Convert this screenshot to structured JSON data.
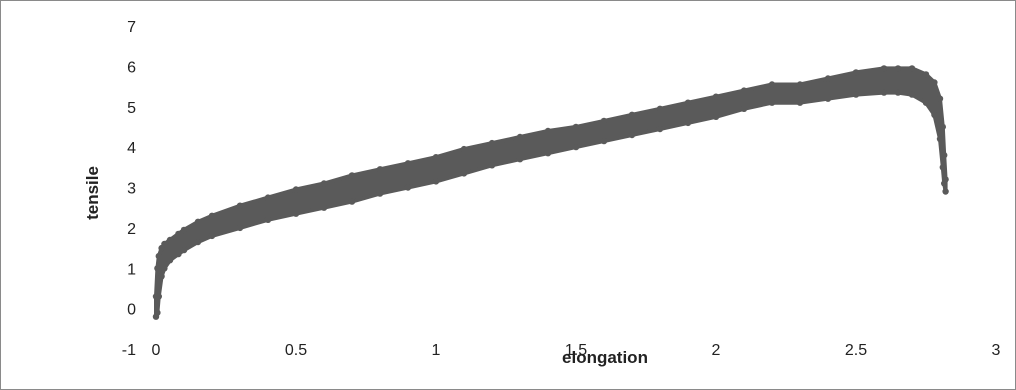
{
  "chart_data": {
    "type": "scatter",
    "xlabel": "elongation",
    "ylabel": "tensile",
    "xlim": [
      0,
      3
    ],
    "ylim": [
      -1,
      7
    ],
    "x_ticks": [
      "0",
      "0.5",
      "1",
      "1.5",
      "2",
      "2.5",
      "3"
    ],
    "y_ticks": [
      "-1",
      "0",
      "1",
      "2",
      "3",
      "4",
      "5",
      "6",
      "7"
    ],
    "grid": false,
    "legend": "none",
    "marker_color": "#5a5a5a",
    "series": [
      {
        "x": [
          0,
          0.005,
          0.01,
          0.02,
          0.03,
          0.05,
          0.08,
          0.1,
          0.15,
          0.2,
          0.3,
          0.4,
          0.5,
          0.6,
          0.7,
          0.8,
          0.9,
          1.0,
          1.1,
          1.2,
          1.3,
          1.4,
          1.5,
          1.6,
          1.7,
          1.8,
          1.9,
          2.0,
          2.1,
          2.2,
          2.3,
          2.4,
          2.5,
          2.6,
          2.65,
          2.7,
          2.75,
          2.78,
          2.8,
          2.81,
          2.815,
          2.82
        ],
        "y_upper": [
          0.3,
          1.0,
          1.3,
          1.5,
          1.6,
          1.7,
          1.85,
          1.95,
          2.15,
          2.3,
          2.55,
          2.75,
          2.95,
          3.1,
          3.3,
          3.45,
          3.6,
          3.75,
          3.95,
          4.1,
          4.25,
          4.4,
          4.5,
          4.65,
          4.8,
          4.95,
          5.1,
          5.25,
          5.4,
          5.55,
          5.55,
          5.7,
          5.85,
          5.95,
          5.95,
          5.95,
          5.8,
          5.6,
          5.2,
          4.5,
          3.8,
          3.2
        ],
        "y_lower": [
          -0.2,
          -0.1,
          0.3,
          0.8,
          1.0,
          1.2,
          1.35,
          1.45,
          1.65,
          1.8,
          2.0,
          2.2,
          2.35,
          2.5,
          2.65,
          2.85,
          3.0,
          3.15,
          3.35,
          3.55,
          3.7,
          3.85,
          4.0,
          4.15,
          4.3,
          4.45,
          4.6,
          4.75,
          4.95,
          5.1,
          5.1,
          5.2,
          5.3,
          5.35,
          5.35,
          5.3,
          5.1,
          4.8,
          4.2,
          3.5,
          3.1,
          2.9
        ]
      }
    ]
  }
}
